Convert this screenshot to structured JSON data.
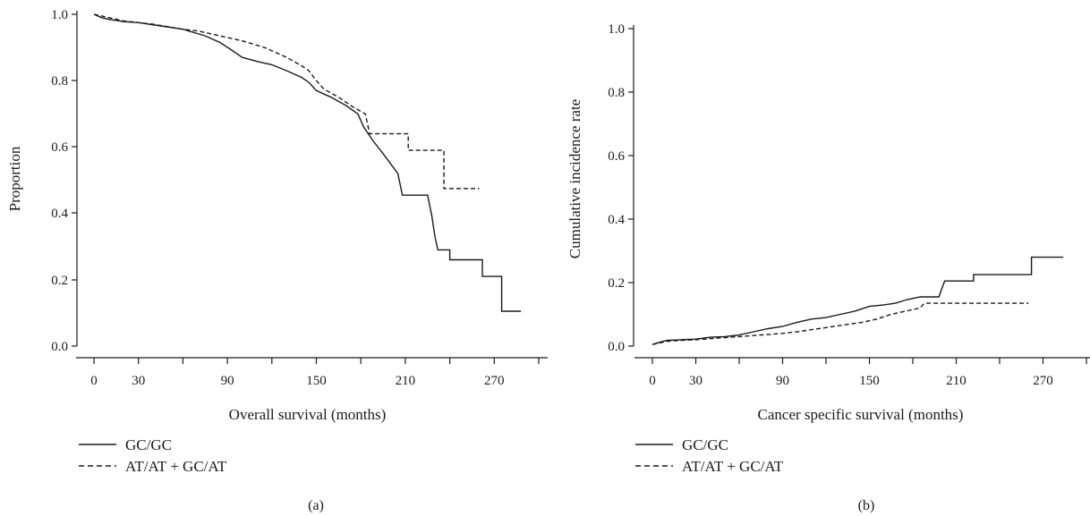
{
  "chart_data": [
    {
      "type": "line",
      "panel_label": "(a)",
      "xlabel": "Overall survival (months)",
      "ylabel": "Proportion",
      "xlim": [
        0,
        300
      ],
      "ylim": [
        0,
        1.0
      ],
      "x_ticks": [
        0,
        30,
        90,
        150,
        210,
        270
      ],
      "x_minor_ticks": [
        60,
        120,
        180,
        240,
        300
      ],
      "y_ticks": [
        "0.0",
        "0.2",
        "0.4",
        "0.6",
        "0.8",
        "1.0"
      ],
      "grid": false,
      "legend_position": "bottom-left",
      "series": [
        {
          "name": "GC/GC",
          "style": "solid",
          "points": [
            [
              0,
              1.0
            ],
            [
              5,
              0.99
            ],
            [
              10,
              0.985
            ],
            [
              20,
              0.978
            ],
            [
              30,
              0.975
            ],
            [
              45,
              0.965
            ],
            [
              60,
              0.955
            ],
            [
              75,
              0.935
            ],
            [
              85,
              0.915
            ],
            [
              92,
              0.895
            ],
            [
              100,
              0.87
            ],
            [
              110,
              0.858
            ],
            [
              120,
              0.848
            ],
            [
              130,
              0.83
            ],
            [
              140,
              0.81
            ],
            [
              145,
              0.795
            ],
            [
              150,
              0.77
            ],
            [
              160,
              0.75
            ],
            [
              170,
              0.725
            ],
            [
              178,
              0.7
            ],
            [
              182,
              0.66
            ],
            [
              188,
              0.62
            ],
            [
              195,
              0.58
            ],
            [
              200,
              0.55
            ],
            [
              205,
              0.52
            ],
            [
              208,
              0.455
            ],
            [
              225,
              0.455
            ],
            [
              228,
              0.39
            ],
            [
              230,
              0.33
            ],
            [
              232,
              0.29
            ],
            [
              240,
              0.29
            ],
            [
              240,
              0.26
            ],
            [
              262,
              0.26
            ],
            [
              262,
              0.21
            ],
            [
              275,
              0.21
            ],
            [
              275,
              0.105
            ],
            [
              288,
              0.105
            ]
          ]
        },
        {
          "name": "AT/AT + GC/AT",
          "style": "dashed",
          "points": [
            [
              0,
              1.0
            ],
            [
              20,
              0.98
            ],
            [
              40,
              0.97
            ],
            [
              60,
              0.955
            ],
            [
              70,
              0.95
            ],
            [
              85,
              0.935
            ],
            [
              100,
              0.92
            ],
            [
              115,
              0.9
            ],
            [
              130,
              0.87
            ],
            [
              140,
              0.845
            ],
            [
              145,
              0.83
            ],
            [
              150,
              0.8
            ],
            [
              155,
              0.775
            ],
            [
              165,
              0.75
            ],
            [
              175,
              0.72
            ],
            [
              183,
              0.7
            ],
            [
              186,
              0.64
            ],
            [
              212,
              0.64
            ],
            [
              212,
              0.59
            ],
            [
              236,
              0.59
            ],
            [
              236,
              0.475
            ],
            [
              260,
              0.475
            ]
          ]
        }
      ]
    },
    {
      "type": "line",
      "panel_label": "(b)",
      "xlabel": "Cancer specific survival (months)",
      "ylabel": "Cumulative incidence rate",
      "xlim": [
        0,
        300
      ],
      "ylim": [
        0,
        1.0
      ],
      "x_ticks": [
        0,
        30,
        90,
        150,
        210,
        270
      ],
      "x_minor_ticks": [
        60,
        120,
        180,
        240,
        300
      ],
      "y_ticks": [
        "0.0",
        "0.2",
        "0.4",
        "0.6",
        "0.8",
        "1.0"
      ],
      "grid": false,
      "legend_position": "bottom-left",
      "series": [
        {
          "name": "GC/GC",
          "style": "solid",
          "points": [
            [
              0,
              0.005
            ],
            [
              5,
              0.012
            ],
            [
              10,
              0.018
            ],
            [
              20,
              0.02
            ],
            [
              30,
              0.022
            ],
            [
              40,
              0.028
            ],
            [
              50,
              0.03
            ],
            [
              60,
              0.035
            ],
            [
              70,
              0.045
            ],
            [
              80,
              0.055
            ],
            [
              90,
              0.062
            ],
            [
              100,
              0.075
            ],
            [
              110,
              0.085
            ],
            [
              120,
              0.09
            ],
            [
              130,
              0.1
            ],
            [
              140,
              0.11
            ],
            [
              150,
              0.125
            ],
            [
              160,
              0.13
            ],
            [
              168,
              0.135
            ],
            [
              175,
              0.145
            ],
            [
              185,
              0.155
            ],
            [
              198,
              0.155
            ],
            [
              200,
              0.18
            ],
            [
              202,
              0.205
            ],
            [
              222,
              0.205
            ],
            [
              222,
              0.225
            ],
            [
              262,
              0.225
            ],
            [
              262,
              0.28
            ],
            [
              284,
              0.28
            ]
          ]
        },
        {
          "name": "AT/AT + GC/AT",
          "style": "dashed",
          "points": [
            [
              0,
              0.005
            ],
            [
              10,
              0.015
            ],
            [
              20,
              0.018
            ],
            [
              30,
              0.02
            ],
            [
              45,
              0.025
            ],
            [
              60,
              0.03
            ],
            [
              75,
              0.035
            ],
            [
              90,
              0.04
            ],
            [
              100,
              0.045
            ],
            [
              115,
              0.055
            ],
            [
              130,
              0.065
            ],
            [
              145,
              0.075
            ],
            [
              155,
              0.085
            ],
            [
              165,
              0.1
            ],
            [
              175,
              0.11
            ],
            [
              185,
              0.12
            ],
            [
              188,
              0.135
            ],
            [
              260,
              0.135
            ]
          ]
        }
      ]
    }
  ]
}
